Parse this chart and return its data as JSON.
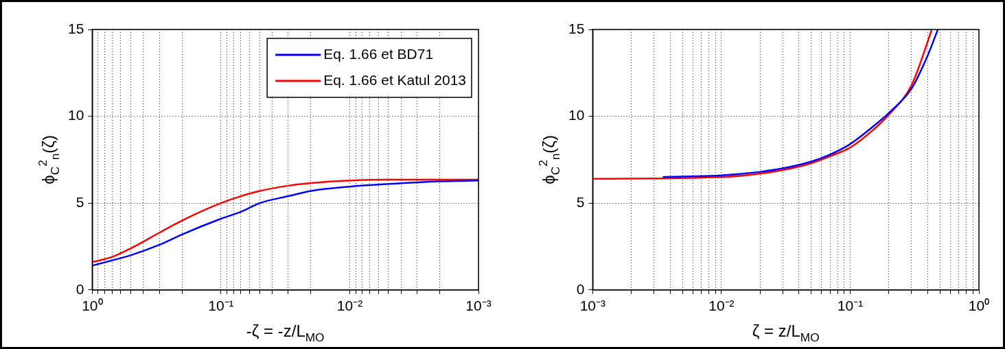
{
  "chart_data": [
    {
      "type": "line",
      "xlabel": "-ζ = -z/L$_{MO}$",
      "ylabel": "ϕ$_{C}$$^{2}$$_{n}$(ζ)",
      "log": "x",
      "grid": true,
      "legend": "top right",
      "line_style": "solid",
      "marker": "none",
      "xlim": [
        1,
        0.001
      ],
      "ylim": [
        0,
        15
      ],
      "yticks": [
        0,
        5,
        10,
        15
      ],
      "xticks": [
        {
          "value": 0.001,
          "label": "10⁻³"
        },
        {
          "value": 0.002,
          "label": null
        },
        {
          "value": 0.003,
          "label": null
        },
        {
          "value": 0.004,
          "label": null
        },
        {
          "value": 0.005,
          "label": null
        },
        {
          "value": 0.006,
          "label": null
        },
        {
          "value": 0.007,
          "label": null
        },
        {
          "value": 0.008,
          "label": null
        },
        {
          "value": 0.009,
          "label": null
        },
        {
          "value": 0.01,
          "label": "10⁻²"
        },
        {
          "value": 0.02,
          "label": null
        },
        {
          "value": 0.03,
          "label": null
        },
        {
          "value": 0.04,
          "label": null
        },
        {
          "value": 0.05,
          "label": null
        },
        {
          "value": 0.06,
          "label": null
        },
        {
          "value": 0.07,
          "label": null
        },
        {
          "value": 0.08,
          "label": null
        },
        {
          "value": 0.09,
          "label": null
        },
        {
          "value": 0.1,
          "label": "10⁻¹"
        },
        {
          "value": 0.2,
          "label": null
        },
        {
          "value": 0.3,
          "label": null
        },
        {
          "value": 0.4,
          "label": null
        },
        {
          "value": 0.5,
          "label": null
        },
        {
          "value": 0.6,
          "label": null
        },
        {
          "value": 0.7,
          "label": null
        },
        {
          "value": 0.8,
          "label": null
        },
        {
          "value": 0.9,
          "label": null
        },
        {
          "value": 1,
          "label": "10⁰"
        }
      ],
      "series": [
        {
          "name": "Eq. 1.66 et BD71",
          "color": "#0000ff",
          "x": [
            1,
            0.7,
            0.5,
            0.3,
            0.2,
            0.1,
            0.07,
            0.05,
            0.03,
            0.02,
            0.01,
            0.005,
            0.002,
            0.001
          ],
          "values": [
            1.4,
            1.7,
            2.0,
            2.6,
            3.2,
            4.1,
            4.5,
            5.0,
            5.4,
            5.7,
            5.95,
            6.1,
            6.25,
            6.3
          ]
        },
        {
          "name": "Eq. 1.66 et Katul 2013",
          "color": "#ff0000",
          "x": [
            1,
            0.7,
            0.5,
            0.3,
            0.2,
            0.1,
            0.07,
            0.05,
            0.03,
            0.02,
            0.01,
            0.005,
            0.001
          ],
          "values": [
            1.6,
            1.9,
            2.4,
            3.3,
            4.0,
            5.0,
            5.4,
            5.7,
            6.0,
            6.15,
            6.3,
            6.35,
            6.35
          ]
        }
      ]
    },
    {
      "type": "line",
      "xlabel": "ζ = z/L$_{MO}$",
      "ylabel": "ϕ$_{C}$$^{2}$$_{n}$(ζ)",
      "log": "x",
      "grid": true,
      "line_style": "solid",
      "marker": "none",
      "xlim": [
        0.001,
        1
      ],
      "ylim": [
        0,
        15
      ],
      "yticks": [
        0,
        5,
        10,
        15
      ],
      "xticks": [
        {
          "value": 0.001,
          "label": "10⁻³"
        },
        {
          "value": 0.002,
          "label": null
        },
        {
          "value": 0.003,
          "label": null
        },
        {
          "value": 0.004,
          "label": null
        },
        {
          "value": 0.005,
          "label": null
        },
        {
          "value": 0.006,
          "label": null
        },
        {
          "value": 0.007,
          "label": null
        },
        {
          "value": 0.008,
          "label": null
        },
        {
          "value": 0.009,
          "label": null
        },
        {
          "value": 0.01,
          "label": "10⁻²"
        },
        {
          "value": 0.02,
          "label": null
        },
        {
          "value": 0.03,
          "label": null
        },
        {
          "value": 0.04,
          "label": null
        },
        {
          "value": 0.05,
          "label": null
        },
        {
          "value": 0.06,
          "label": null
        },
        {
          "value": 0.07,
          "label": null
        },
        {
          "value": 0.08,
          "label": null
        },
        {
          "value": 0.09,
          "label": null
        },
        {
          "value": 0.1,
          "label": "10⁻¹"
        },
        {
          "value": 0.2,
          "label": null
        },
        {
          "value": 0.3,
          "label": null
        },
        {
          "value": 0.4,
          "label": null
        },
        {
          "value": 0.5,
          "label": null
        },
        {
          "value": 0.6,
          "label": null
        },
        {
          "value": 0.7,
          "label": null
        },
        {
          "value": 0.8,
          "label": null
        },
        {
          "value": 0.9,
          "label": null
        },
        {
          "value": 1,
          "label": "10⁰"
        }
      ],
      "series": [
        {
          "color": "#0000ff",
          "x": [
            0.0035,
            0.01,
            0.02,
            0.03,
            0.05,
            0.07,
            0.1,
            0.15,
            0.2,
            0.3,
            0.4,
            0.48
          ],
          "values": [
            6.5,
            6.6,
            6.8,
            7.0,
            7.4,
            7.8,
            8.4,
            9.4,
            10.2,
            11.6,
            13.5,
            15
          ]
        },
        {
          "color": "#ff0000",
          "x": [
            0.001,
            0.01,
            0.02,
            0.03,
            0.05,
            0.07,
            0.1,
            0.15,
            0.2,
            0.3,
            0.4,
            0.43
          ],
          "values": [
            6.4,
            6.5,
            6.7,
            6.9,
            7.3,
            7.7,
            8.2,
            9.2,
            10.1,
            11.8,
            14.3,
            15
          ]
        }
      ]
    }
  ]
}
